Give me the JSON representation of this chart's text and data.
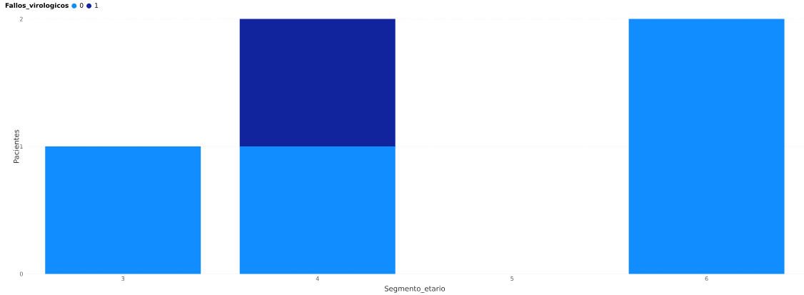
{
  "chart_data": {
    "type": "bar",
    "stacked": true,
    "xlabel": "Segmento_etario",
    "ylabel": "Pacientes",
    "legend_title": "Fallos_virologicos",
    "legend": "top left",
    "categories": [
      "3",
      "4",
      "5",
      "6"
    ],
    "series": [
      {
        "name": "0",
        "color": "#118dff",
        "values": [
          1,
          1,
          null,
          2
        ]
      },
      {
        "name": "1",
        "color": "#12239e",
        "values": [
          null,
          1,
          null,
          null
        ]
      }
    ],
    "ylim": [
      0,
      2
    ],
    "yticks": [
      0,
      1,
      2
    ],
    "grid": "y",
    "marker": "circle"
  }
}
